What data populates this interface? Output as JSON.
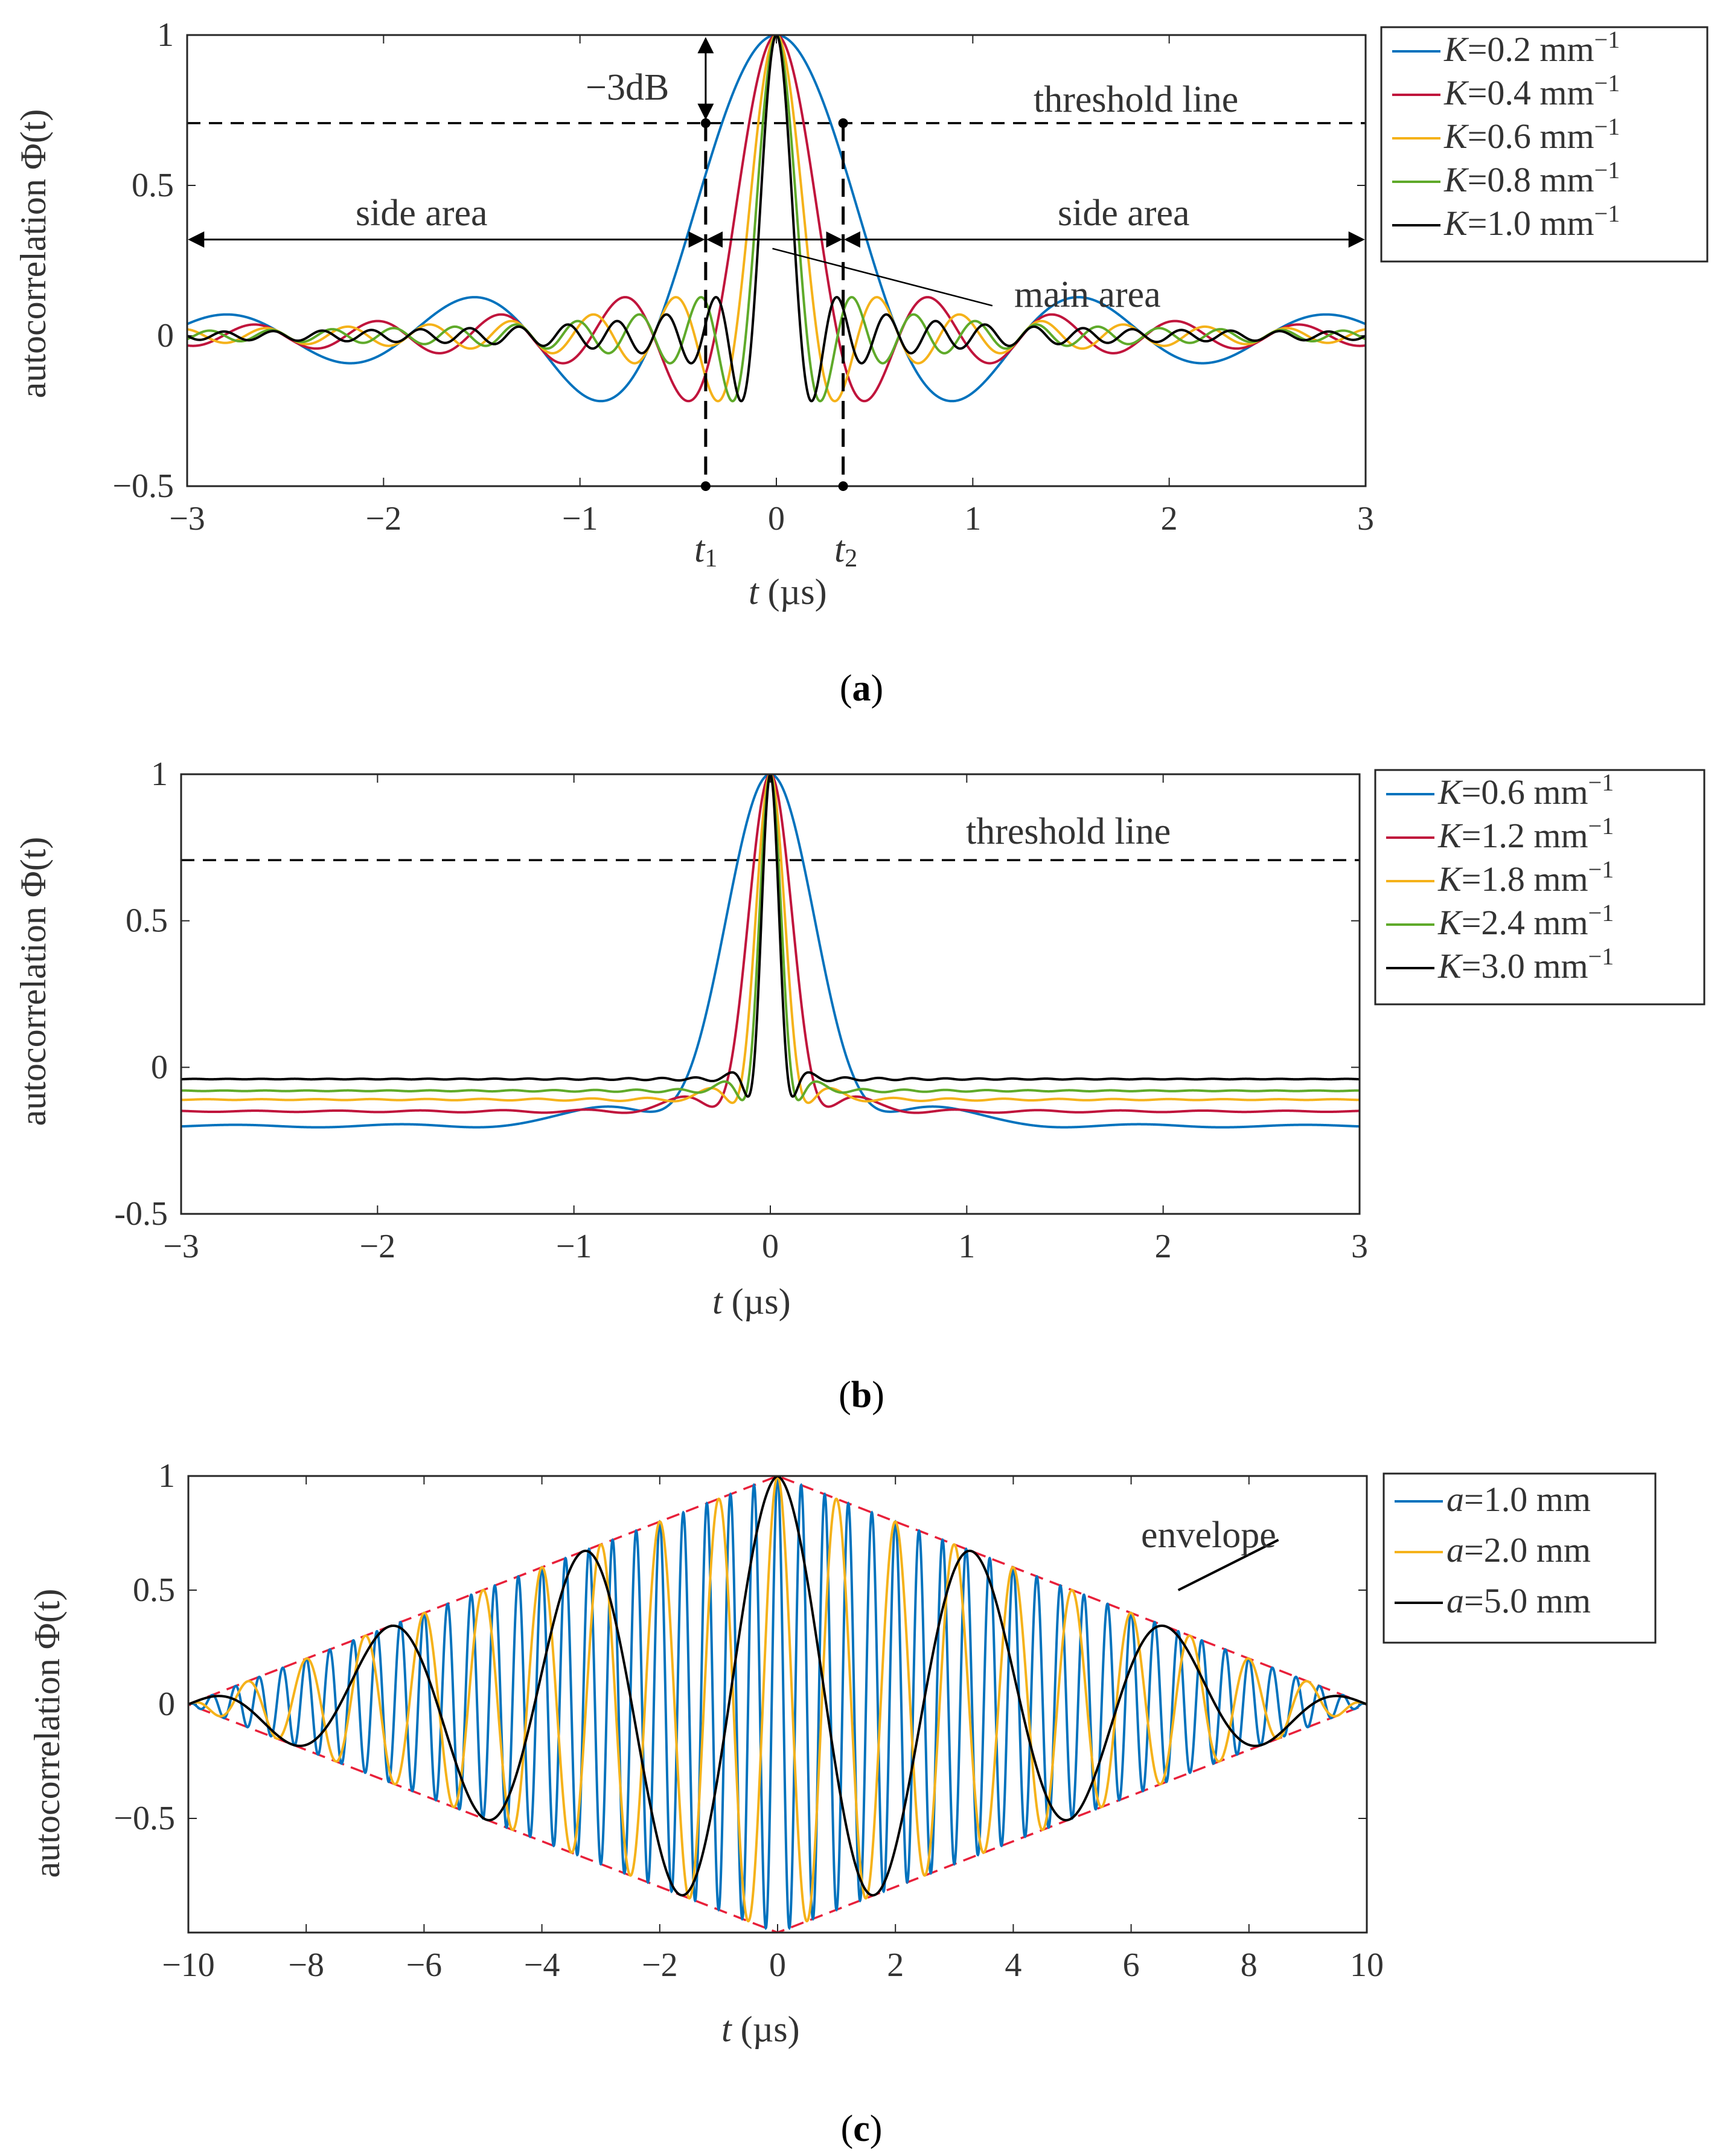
{
  "chart_data": [
    {
      "panel": "a",
      "type": "line",
      "caption_letter": "a",
      "xlabel_var": "t",
      "xlabel_unit": " (µs)",
      "ylabel": "autocorrelation Φ(t)",
      "xlim": [
        -3,
        3
      ],
      "ylim": [
        -0.5,
        1
      ],
      "xticks": [
        -3,
        -2,
        -1,
        0,
        1,
        2,
        3
      ],
      "xtick_labels": [
        "−3",
        "−2",
        "−1",
        "0",
        "1",
        "2",
        "3"
      ],
      "yticks": [
        -0.5,
        0,
        0.5,
        1
      ],
      "ytick_labels": [
        "−0.5",
        "0",
        "0.5",
        "1"
      ],
      "threshold": 0.707,
      "series": [
        {
          "label_pre": "K",
          "label_val": "=0.2 mm",
          "color": "#0072BD",
          "model": "sinc",
          "halfwidth": 0.625,
          "floor": 0
        },
        {
          "label_pre": "K",
          "label_val": "=0.4 mm",
          "color": "#C0143C",
          "model": "sinc",
          "halfwidth": 0.313,
          "floor": 0
        },
        {
          "label_pre": "K",
          "label_val": "=0.6 mm",
          "color": "#F5B21A",
          "model": "sinc",
          "halfwidth": 0.208,
          "floor": 0
        },
        {
          "label_pre": "K",
          "label_val": "=0.8 mm",
          "color": "#5FAA2A",
          "model": "sinc",
          "halfwidth": 0.156,
          "floor": 0
        },
        {
          "label_pre": "K",
          "label_val": "=1.0 mm",
          "color": "#000000",
          "model": "sinc",
          "halfwidth": 0.125,
          "floor": 0
        }
      ],
      "unit_sup": "−1",
      "annotations": {
        "threshold_label": "threshold line",
        "db_label": "−3dB",
        "side_left": "side area",
        "side_right": "side area",
        "main": "main area",
        "t1_var": "t",
        "t1_sub": "1",
        "t2_var": "t",
        "t2_sub": "2",
        "t1": -0.36,
        "t2": 0.34,
        "side_arrow_y": 0.32,
        "main_pointer_from": [
          -0.02,
          0.29
        ],
        "main_pointer_to": [
          1.1,
          0.1
        ]
      }
    },
    {
      "panel": "b",
      "type": "line",
      "caption_letter": "b",
      "xlabel_var": "t",
      "xlabel_unit": " (µs)",
      "ylabel": "autocorrelation Φ(t)",
      "xlim": [
        -3,
        3
      ],
      "ylim": [
        -0.5,
        1
      ],
      "xticks": [
        -3,
        -2,
        -1,
        0,
        1,
        2,
        3
      ],
      "xtick_labels": [
        "−3",
        "−2",
        "−1",
        "0",
        "1",
        "2",
        "3"
      ],
      "yticks": [
        -0.5,
        0,
        0.5,
        1
      ],
      "ytick_labels": [
        "-0.5",
        "0",
        "0.5",
        "1"
      ],
      "threshold": 0.707,
      "series": [
        {
          "label_pre": "K",
          "label_val": "=0.6 mm",
          "color": "#0072BD",
          "model": "damped",
          "halfwidth": 0.42,
          "floor": -0.2
        },
        {
          "label_pre": "K",
          "label_val": "=1.2 mm",
          "color": "#C0143C",
          "model": "damped",
          "halfwidth": 0.21,
          "floor": -0.15
        },
        {
          "label_pre": "K",
          "label_val": "=1.8 mm",
          "color": "#F5B21A",
          "model": "damped",
          "halfwidth": 0.14,
          "floor": -0.11
        },
        {
          "label_pre": "K",
          "label_val": "=2.4 mm",
          "color": "#5FAA2A",
          "model": "damped",
          "halfwidth": 0.105,
          "floor": -0.08
        },
        {
          "label_pre": "K",
          "label_val": "=3.0 mm",
          "color": "#000000",
          "model": "damped",
          "halfwidth": 0.085,
          "floor": -0.04
        }
      ],
      "unit_sup": "−1",
      "annotations": {
        "threshold_label": "threshold line"
      }
    },
    {
      "panel": "c",
      "type": "line",
      "caption_letter": "c",
      "xlabel_var": "t",
      "xlabel_unit": " (µs)",
      "ylabel": "autocorrelation Φ(t)",
      "xlim": [
        -10,
        10
      ],
      "ylim": [
        -1,
        1
      ],
      "xticks": [
        -10,
        -8,
        -6,
        -4,
        -2,
        0,
        2,
        4,
        6,
        8,
        10
      ],
      "xtick_labels": [
        "−10",
        "−8",
        "−6",
        "−4",
        "−2",
        "0",
        "2",
        "4",
        "6",
        "8",
        "10"
      ],
      "yticks": [
        -0.5,
        0,
        0.5,
        1
      ],
      "ytick_labels": [
        "−0.5",
        "0",
        "0.5",
        "1"
      ],
      "series": [
        {
          "label_pre": "a",
          "label_val": "=1.0 mm",
          "color": "#0072BD",
          "model": "tri_cos",
          "period": 0.4
        },
        {
          "label_pre": "a",
          "label_val": "=2.0 mm",
          "color": "#F5B21A",
          "model": "tri_cos",
          "period": 1.0
        },
        {
          "label_pre": "a",
          "label_val": "=5.0 mm",
          "color": "#000000",
          "model": "tri_cos",
          "period": 3.3
        }
      ],
      "envelope": {
        "color": "#E8203A",
        "label": "envelope",
        "pointer_from": [
          8.5,
          0.72
        ],
        "pointer_to": [
          6.8,
          0.5
        ]
      }
    }
  ]
}
